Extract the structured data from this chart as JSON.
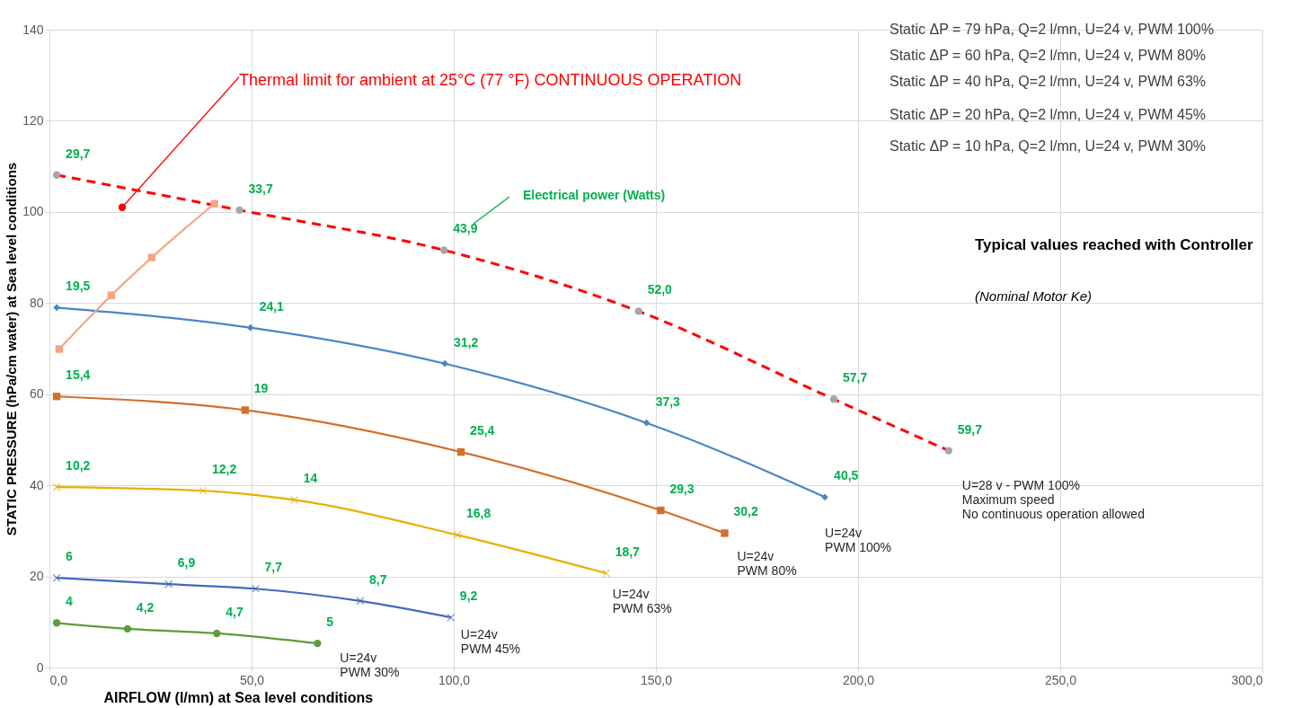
{
  "chart_data": {
    "type": "line",
    "xlabel": "AIRFLOW (l/mn) at Sea level conditions",
    "ylabel": "STATIC PRESSURE (hPa/cm water) at Sea level conditions",
    "xlim": [
      0,
      300
    ],
    "ylim": [
      0,
      140
    ],
    "xticks": [
      {
        "value": 0,
        "label": "0,0"
      },
      {
        "value": 50,
        "label": "50,0"
      },
      {
        "value": 100,
        "label": "100,0"
      },
      {
        "value": 150,
        "label": "150,0"
      },
      {
        "value": 200,
        "label": "200,0"
      },
      {
        "value": 250,
        "label": "250,0"
      },
      {
        "value": 300,
        "label": "300,0"
      }
    ],
    "yticks": [
      0,
      20,
      40,
      60,
      80,
      100,
      120,
      140
    ],
    "grid": true,
    "line_style": "solid",
    "series": [
      {
        "color": "#ff0000",
        "line_style": "dashed",
        "marker": "none",
        "x": [
          1.8,
          47.0,
          97.6,
          145.7,
          194.0,
          222.4
        ],
        "values": [
          108.1,
          100.4,
          91.6,
          78.2,
          58.9,
          47.6
        ]
      },
      {
        "type": "scatter",
        "color": "#a6a6a6",
        "marker": "circle",
        "x": [
          1.8,
          47.0,
          97.6,
          145.7,
          194.0,
          222.4
        ],
        "values": [
          108.1,
          100.4,
          91.6,
          78.2,
          58.9,
          47.6
        ]
      },
      {
        "color": "#4a86c5",
        "marker": "diamond",
        "x": [
          1.8,
          49.7,
          97.8,
          147.7,
          191.8
        ],
        "values": [
          79.0,
          74.6,
          66.7,
          53.7,
          37.4
        ]
      },
      {
        "color": "#d36f2c",
        "marker": "square",
        "x": [
          1.8,
          48.4,
          101.8,
          151.2,
          167.0
        ],
        "values": [
          59.5,
          56.5,
          47.3,
          34.5,
          29.5
        ]
      },
      {
        "color": "#e6b000",
        "marker": "cross",
        "x": [
          1.8,
          38.0,
          60.6,
          100.9,
          137.7
        ],
        "values": [
          39.6,
          38.8,
          36.8,
          29.1,
          20.7
        ]
      },
      {
        "color": "#4169c0",
        "marker": "cross",
        "x": [
          1.8,
          29.5,
          51.0,
          76.9,
          99.3
        ],
        "values": [
          19.7,
          18.3,
          17.3,
          14.6,
          11.0
        ]
      },
      {
        "color": "#5e9c3a",
        "marker": "circle",
        "x": [
          1.8,
          19.3,
          41.4,
          66.3
        ],
        "values": [
          9.8,
          8.5,
          7.5,
          5.3
        ]
      },
      {
        "color": "#f4a582",
        "marker": "square",
        "x": [
          2.4,
          15.3,
          25.3,
          40.8
        ],
        "values": [
          69.9,
          81.7,
          90.0,
          101.8
        ]
      },
      {
        "type": "scatter",
        "color": "#ff0000",
        "marker": "circle",
        "x": [
          18.0
        ],
        "values": [
          101.0
        ]
      }
    ],
    "annotations": [
      {
        "text": "Thermal limit for ambient at 25°C (77 °F)   CONTINUOUS OPERATION",
        "x": 18.0,
        "y": 101.0
      },
      "Electrical power (Watts)",
      {
        "text": "U=24v\nPWM 100%",
        "x": 191.8,
        "y": 37.4
      },
      {
        "text": "U=24v\nPWM  80%",
        "x": 167.0,
        "y": 29.5
      },
      {
        "text": "U=24v\nPWM 63%",
        "x": 137.7,
        "y": 20.7
      },
      {
        "text": "U=24v\nPWM 45%",
        "x": 99.3,
        "y": 11.0
      },
      {
        "text": "U=24v\nPWM 30%",
        "x": 66.3,
        "y": 5.3
      },
      {
        "text": "U=28 v  - PWM 100%\nMaximum speed\nNo continuous operation allowed",
        "x": 222.4,
        "y": 47.6
      },
      "Typical values reached with Controller",
      "(Nominal Motor Ke)",
      "Static ΔP  = 79 hPa, Q=2 l/mn, U=24 v, PWM 100%",
      "Static ΔP  = 60 hPa, Q=2 l/mn, U=24 v, PWM 80%",
      "Static ΔP  = 40 hPa, Q=2 l/mn, U=24 v, PWM 63%",
      "Static  ΔP = 20 hPa, Q=2 l/mn, U=24 v, PWM 45%",
      "Static ΔP  = 10 hPa, Q=2 l/mn, U=24 v, PWM 30%",
      {
        "text": "29,7",
        "x": 1.8,
        "y": 108.1
      },
      {
        "text": "33,7",
        "x": 47.0,
        "y": 100.4
      },
      {
        "text": "43,9",
        "x": 97.6,
        "y": 91.6
      },
      {
        "text": "52,0",
        "x": 145.7,
        "y": 78.2
      },
      {
        "text": "57,7",
        "x": 194.0,
        "y": 58.9
      },
      {
        "text": "59,7",
        "x": 222.4,
        "y": 47.6
      },
      {
        "text": "19,5",
        "x": 1.8,
        "y": 79.0
      },
      {
        "text": "24,1",
        "x": 49.7,
        "y": 74.6
      },
      {
        "text": "31,2",
        "x": 97.8,
        "y": 66.7
      },
      {
        "text": "37,3",
        "x": 147.7,
        "y": 53.7
      },
      {
        "text": "40,5",
        "x": 191.8,
        "y": 37.4
      },
      {
        "text": "15,4",
        "x": 1.8,
        "y": 59.5
      },
      {
        "text": "19",
        "x": 48.4,
        "y": 56.5
      },
      {
        "text": "25,4",
        "x": 101.8,
        "y": 47.3
      },
      {
        "text": "29,3",
        "x": 151.2,
        "y": 34.5
      },
      {
        "text": "30,2",
        "x": 167.0,
        "y": 29.5
      },
      {
        "text": "10,2",
        "x": 1.8,
        "y": 39.6
      },
      {
        "text": "12,2",
        "x": 38.0,
        "y": 38.8
      },
      {
        "text": "14",
        "x": 60.6,
        "y": 36.8
      },
      {
        "text": "16,8",
        "x": 100.9,
        "y": 29.1
      },
      {
        "text": "18,7",
        "x": 137.7,
        "y": 20.7
      },
      {
        "text": "6",
        "x": 1.8,
        "y": 19.7
      },
      {
        "text": "6,9",
        "x": 29.5,
        "y": 18.3
      },
      {
        "text": "7,7",
        "x": 51.0,
        "y": 17.3
      },
      {
        "text": "8,7",
        "x": 76.9,
        "y": 14.6
      },
      {
        "text": "9,2",
        "x": 99.3,
        "y": 11.0
      },
      {
        "text": "4",
        "x": 1.8,
        "y": 9.8
      },
      {
        "text": "4,2",
        "x": 19.3,
        "y": 8.5
      },
      {
        "text": "4,7",
        "x": 41.4,
        "y": 7.5
      },
      {
        "text": "5",
        "x": 66.3,
        "y": 5.3
      }
    ]
  }
}
